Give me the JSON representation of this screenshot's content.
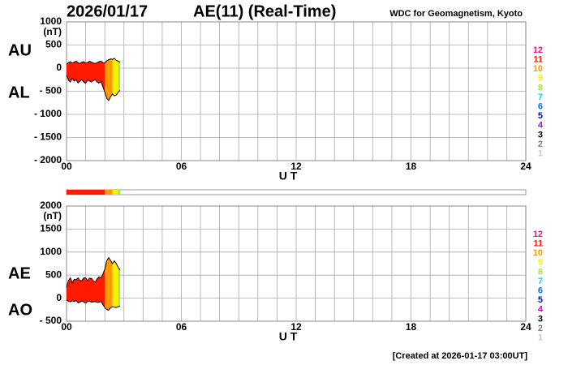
{
  "header": {
    "date": "2026/01/17",
    "title": "AE(11) (Real-Time)",
    "source": "WDC for Geomagnetism, Kyoto"
  },
  "footer": "[Created at 2026-01-17 03:00UT]",
  "station_legend": [
    {
      "value": 12,
      "color": "#e8157e"
    },
    {
      "value": 11,
      "color": "#ff1a00"
    },
    {
      "value": 10,
      "color": "#ff9900"
    },
    {
      "value": 9,
      "color": "#ffee00"
    },
    {
      "value": 8,
      "color": "#99ee33"
    },
    {
      "value": 7,
      "color": "#00d8e0"
    },
    {
      "value": 6,
      "color": "#0070ff"
    },
    {
      "value": 5,
      "color": "#0010b0"
    },
    {
      "value": 4,
      "color": "#cc00cc"
    },
    {
      "value": 3,
      "color": "#000000"
    },
    {
      "value": 2,
      "color": "#808080"
    },
    {
      "value": 1,
      "color": "#c8c8c8"
    }
  ],
  "station_segments": [
    {
      "start": 0,
      "end": 2.0,
      "stations": 11
    },
    {
      "start": 2.0,
      "end": 2.4,
      "stations": 10
    },
    {
      "start": 2.4,
      "end": 2.7,
      "stations": 9
    },
    {
      "start": 2.7,
      "end": 2.8,
      "stations": 8
    }
  ],
  "chart_data": [
    {
      "type": "band",
      "y_unit": "(nT)",
      "xlabel": "U T",
      "grid": true,
      "xlim": [
        0,
        24
      ],
      "xticks": [
        {
          "value": 0,
          "label": "00"
        },
        {
          "value": 6,
          "label": "06"
        },
        12,
        18,
        24
      ],
      "xminor_ticks": [
        0,
        1,
        2,
        3,
        4,
        5,
        6,
        7,
        8,
        9,
        10,
        11,
        12,
        13,
        14,
        15,
        16,
        17,
        18,
        19,
        20,
        21,
        22,
        23,
        24
      ],
      "ylim": [
        -2000,
        1000
      ],
      "yticks": [
        1000,
        500,
        0,
        {
          "value": -500,
          "label": "- 500"
        },
        {
          "value": -1000,
          "label": "- 1000"
        },
        {
          "value": -1500,
          "label": "- 1500"
        },
        {
          "value": -2000,
          "label": "- 2000"
        }
      ],
      "x": [
        0,
        0.1,
        0.2,
        0.3,
        0.4,
        0.5,
        0.6,
        0.7,
        0.8,
        0.9,
        1.0,
        1.1,
        1.2,
        1.3,
        1.4,
        1.5,
        1.6,
        1.7,
        1.8,
        1.9,
        2.0,
        2.1,
        2.2,
        2.3,
        2.4,
        2.5,
        2.6,
        2.7,
        2.8
      ],
      "series": [
        {
          "name": "AU",
          "color": "#000000",
          "values": [
            80,
            120,
            140,
            110,
            130,
            150,
            120,
            100,
            130,
            140,
            110,
            120,
            150,
            130,
            110,
            100,
            120,
            140,
            150,
            120,
            110,
            160,
            180,
            200,
            190,
            210,
            170,
            150,
            130
          ]
        },
        {
          "name": "AL",
          "color": "#000000",
          "values": [
            -150,
            -260,
            -300,
            -220,
            -280,
            -250,
            -320,
            -280,
            -250,
            -300,
            -330,
            -260,
            -280,
            -300,
            -270,
            -250,
            -300,
            -320,
            -290,
            -400,
            -520,
            -650,
            -700,
            -620,
            -560,
            -600,
            -580,
            -520,
            -480
          ]
        }
      ]
    },
    {
      "type": "band",
      "y_unit": "(nT)",
      "xlabel": "U T",
      "grid": true,
      "xlim": [
        0,
        24
      ],
      "xticks": [
        {
          "value": 0,
          "label": "00"
        },
        {
          "value": 6,
          "label": "06"
        },
        12,
        18,
        24
      ],
      "xminor_ticks": [
        0,
        1,
        2,
        3,
        4,
        5,
        6,
        7,
        8,
        9,
        10,
        11,
        12,
        13,
        14,
        15,
        16,
        17,
        18,
        19,
        20,
        21,
        22,
        23,
        24
      ],
      "ylim": [
        -500,
        2000
      ],
      "yticks": [
        2000,
        1500,
        1000,
        500,
        0,
        {
          "value": -500,
          "label": "- 500"
        }
      ],
      "x": [
        0,
        0.1,
        0.2,
        0.3,
        0.4,
        0.5,
        0.6,
        0.7,
        0.8,
        0.9,
        1.0,
        1.1,
        1.2,
        1.3,
        1.4,
        1.5,
        1.6,
        1.7,
        1.8,
        1.9,
        2.0,
        2.1,
        2.2,
        2.3,
        2.4,
        2.5,
        2.6,
        2.7,
        2.8
      ],
      "series": [
        {
          "name": "AE",
          "color": "#000000",
          "values": [
            230,
            380,
            440,
            330,
            410,
            400,
            440,
            380,
            380,
            440,
            440,
            380,
            430,
            430,
            380,
            350,
            420,
            460,
            440,
            520,
            630,
            810,
            880,
            820,
            750,
            810,
            750,
            670,
            610
          ]
        },
        {
          "name": "AO",
          "color": "#000000",
          "values": [
            -35,
            -70,
            -80,
            -55,
            -75,
            -50,
            -100,
            -90,
            -60,
            -80,
            -110,
            -70,
            -65,
            -85,
            -80,
            -75,
            -90,
            -90,
            -70,
            -140,
            -205,
            -245,
            -260,
            -210,
            -185,
            -195,
            -205,
            -185,
            -175
          ]
        }
      ]
    }
  ]
}
